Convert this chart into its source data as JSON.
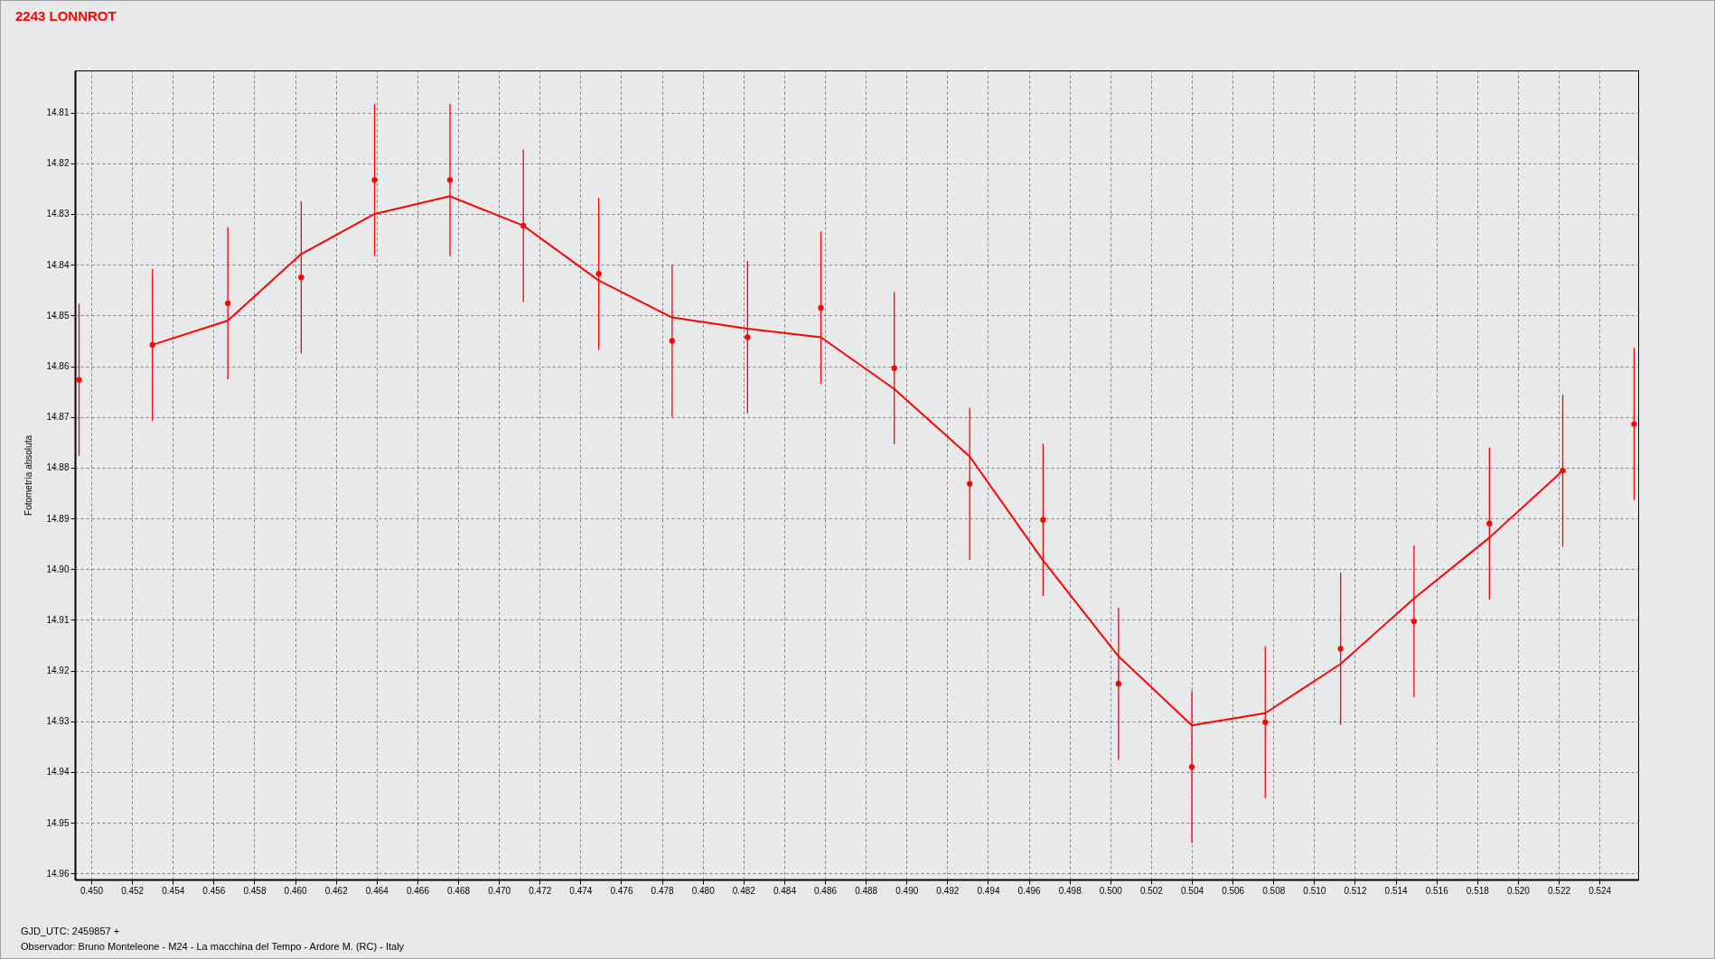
{
  "chart_data": {
    "type": "scatter",
    "title": "2243 LONNROT",
    "ylabel": "Fotometría absoluta",
    "xlim": [
      0.4492,
      0.5259
    ],
    "ylim": [
      14.9612,
      14.8017
    ],
    "xticks": [
      {
        "value": 0.45,
        "label": "0.450"
      },
      {
        "value": 0.452,
        "label": "0.452"
      },
      {
        "value": 0.454,
        "label": "0.454"
      },
      {
        "value": 0.456,
        "label": "0.456"
      },
      {
        "value": 0.458,
        "label": "0.458"
      },
      {
        "value": 0.46,
        "label": "0.460"
      },
      {
        "value": 0.462,
        "label": "0.462"
      },
      {
        "value": 0.464,
        "label": "0.464"
      },
      {
        "value": 0.466,
        "label": "0.466"
      },
      {
        "value": 0.468,
        "label": "0.468"
      },
      {
        "value": 0.47,
        "label": "0.470"
      },
      {
        "value": 0.472,
        "label": "0.472"
      },
      {
        "value": 0.474,
        "label": "0.474"
      },
      {
        "value": 0.476,
        "label": "0.476"
      },
      {
        "value": 0.478,
        "label": "0.478"
      },
      {
        "value": 0.48,
        "label": "0.480"
      },
      {
        "value": 0.482,
        "label": "0.482"
      },
      {
        "value": 0.484,
        "label": "0.484"
      },
      {
        "value": 0.486,
        "label": "0.486"
      },
      {
        "value": 0.488,
        "label": "0.488"
      },
      {
        "value": 0.49,
        "label": "0.490"
      },
      {
        "value": 0.492,
        "label": "0.492"
      },
      {
        "value": 0.494,
        "label": "0.494"
      },
      {
        "value": 0.496,
        "label": "0.496"
      },
      {
        "value": 0.498,
        "label": "0.498"
      },
      {
        "value": 0.5,
        "label": "0.500"
      },
      {
        "value": 0.502,
        "label": "0.502"
      },
      {
        "value": 0.504,
        "label": "0.504"
      },
      {
        "value": 0.506,
        "label": "0.506"
      },
      {
        "value": 0.508,
        "label": "0.508"
      },
      {
        "value": 0.51,
        "label": "0.510"
      },
      {
        "value": 0.512,
        "label": "0.512"
      },
      {
        "value": 0.514,
        "label": "0.514"
      },
      {
        "value": 0.516,
        "label": "0.516"
      },
      {
        "value": 0.518,
        "label": "0.518"
      },
      {
        "value": 0.52,
        "label": "0.520"
      },
      {
        "value": 0.522,
        "label": "0.522"
      },
      {
        "value": 0.524,
        "label": "0.524"
      }
    ],
    "yticks": [
      14.81,
      14.82,
      14.83,
      14.84,
      14.85,
      14.86,
      14.87,
      14.88,
      14.89,
      {
        "value": 14.9,
        "label": "14.90"
      },
      14.91,
      14.92,
      14.93,
      14.94,
      14.95,
      14.96
    ],
    "grid": true,
    "marker": "circle",
    "line_style": "solid",
    "annotations": [
      "GJD_UTC: 2459857 +",
      "Observador: Bruno Monteleone - M24 - La macchina del Tempo - Ardore M. (RC) - Italy"
    ],
    "series": [
      {
        "color": "#ff0000",
        "x": [
          0.4494,
          0.453,
          0.4567,
          0.4603,
          0.4639,
          0.4676,
          0.4712,
          0.4749,
          0.4785,
          0.4822,
          0.4858,
          0.4894,
          0.4931,
          0.4967,
          0.5004,
          0.504,
          0.5076,
          0.5113,
          0.5149,
          0.5186,
          0.5222,
          0.5257
        ],
        "values": [
          14.8627,
          14.8558,
          14.8476,
          14.8425,
          14.8233,
          14.8233,
          14.8323,
          14.8418,
          14.855,
          14.8543,
          14.8485,
          14.8604,
          14.8832,
          14.8903,
          14.9226,
          14.939,
          14.9302,
          14.9157,
          14.9103,
          14.891,
          14.8806,
          14.8714
        ],
        "errors": [
          0.015,
          0.015,
          0.015,
          0.015,
          0.015,
          0.015,
          0.015,
          0.015,
          0.015,
          0.015,
          0.015,
          0.015,
          0.015,
          0.015,
          0.015,
          0.015,
          0.015,
          0.015,
          0.015,
          0.015,
          0.015,
          0.015
        ]
      },
      {
        "type": "line",
        "marker": "none",
        "color": "#ff0000",
        "x": [
          0.453,
          0.4567,
          0.4603,
          0.4639,
          0.4676,
          0.4712,
          0.4749,
          0.4785,
          0.4822,
          0.4858,
          0.4894,
          0.4931,
          0.4967,
          0.5004,
          0.504,
          0.5076,
          0.5113,
          0.5149,
          0.5186,
          0.5222
        ],
        "values": [
          14.8558,
          14.851,
          14.8379,
          14.83,
          14.8265,
          14.8323,
          14.8431,
          14.8504,
          14.8526,
          14.8543,
          14.8645,
          14.8778,
          14.8983,
          14.9172,
          14.9308,
          14.9284,
          14.9187,
          14.9058,
          14.8938,
          14.8806
        ]
      }
    ]
  }
}
